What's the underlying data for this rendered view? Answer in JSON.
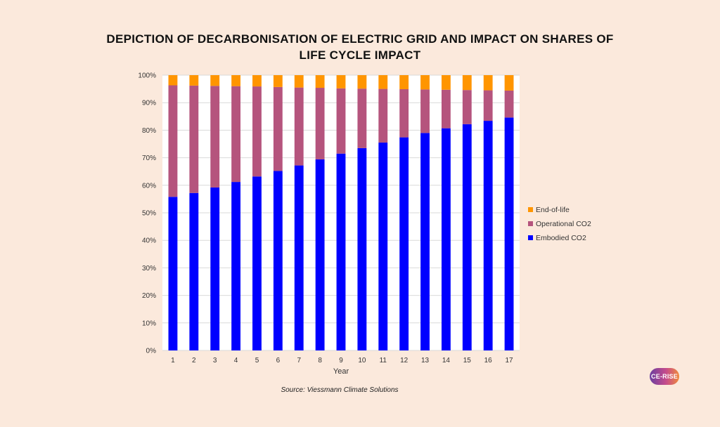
{
  "title_lines": [
    "DEPICTION OF DECARBONISATION OF ELECTRIC GRID AND IMPACT ON SHARES OF",
    "LIFE CYCLE IMPACT"
  ],
  "source": "Source: Viessmann Climate Solutions",
  "logo_text": "CE-RISE",
  "colors": {
    "embodied": "#0000ff",
    "operational": "#b5547d",
    "end_of_life": "#ff9500",
    "gridline": "#d9d9d9",
    "plot_bg": "#ffffff"
  },
  "chart_data": {
    "type": "bar",
    "stacked": true,
    "title": "DEPICTION OF DECARBONISATION OF ELECTRIC GRID AND IMPACT ON SHARES OF LIFE CYCLE IMPACT",
    "xlabel": "Year",
    "ylabel": "",
    "ylim": [
      0,
      100
    ],
    "yticks": [
      "0%",
      "10%",
      "20%",
      "30%",
      "40%",
      "50%",
      "60%",
      "70%",
      "80%",
      "90%",
      "100%"
    ],
    "categories": [
      "1",
      "2",
      "3",
      "4",
      "5",
      "6",
      "7",
      "8",
      "9",
      "10",
      "11",
      "12",
      "13",
      "14",
      "15",
      "16",
      "17"
    ],
    "series": [
      {
        "name": "Embodied CO2",
        "values": [
          55.8,
          57.2,
          59.2,
          61.2,
          63.2,
          65.2,
          67.2,
          69.4,
          71.5,
          73.5,
          75.5,
          77.4,
          79.0,
          80.7,
          82.2,
          83.4,
          84.6
        ]
      },
      {
        "name": "Operational CO2",
        "values": [
          40.5,
          39.0,
          36.9,
          34.8,
          32.7,
          30.5,
          28.3,
          26.0,
          23.7,
          21.6,
          19.5,
          17.5,
          15.8,
          14.0,
          12.4,
          11.1,
          9.8
        ]
      },
      {
        "name": "End-of-life",
        "values": [
          3.7,
          3.8,
          3.9,
          4.0,
          4.1,
          4.3,
          4.5,
          4.6,
          4.8,
          4.9,
          5.0,
          5.1,
          5.2,
          5.3,
          5.4,
          5.5,
          5.6
        ]
      }
    ],
    "legend": {
      "position": "right",
      "items": [
        "End-of-life",
        "Operational CO2",
        "Embodied CO2"
      ]
    },
    "grid": true
  }
}
